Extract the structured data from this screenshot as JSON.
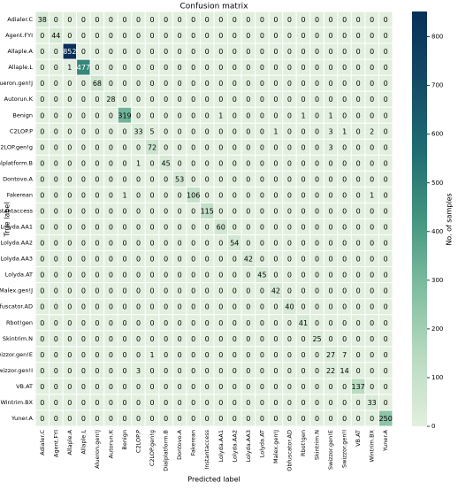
{
  "chart_data": {
    "type": "heatmap",
    "title": "Confusion matrix",
    "x_label": "Predicted label",
    "y_label": "True label",
    "categories": [
      "Adialer.C",
      "Agent.FYI",
      "Allaple.A",
      "Allaple.L",
      "Alueron.gen!J",
      "Autorun.K",
      "Benign",
      "C2LOP.P",
      "C2LOP.gen!g",
      "Dialplatform.B",
      "Dontovo.A",
      "Fakerean",
      "Instantaccess",
      "Lolyda.AA1",
      "Lolyda.AA2",
      "Lolyda.AA3",
      "Lolyda.AT",
      "Malex.gen!J",
      "Obfuscator.AD",
      "Rbot!gen",
      "Skintrim.N",
      "Swizzor.gen!E",
      "Swizzor.gen!I",
      "VB.AT",
      "Wintrim.BX",
      "Yuner.A"
    ],
    "values": [
      [
        38,
        0,
        0,
        0,
        0,
        0,
        0,
        0,
        0,
        0,
        0,
        0,
        0,
        0,
        0,
        0,
        0,
        0,
        0,
        0,
        0,
        0,
        0,
        0,
        0,
        0
      ],
      [
        0,
        44,
        0,
        0,
        0,
        0,
        0,
        0,
        0,
        0,
        0,
        0,
        0,
        0,
        0,
        0,
        0,
        0,
        0,
        0,
        0,
        0,
        0,
        0,
        0,
        0
      ],
      [
        0,
        0,
        852,
        0,
        0,
        0,
        0,
        0,
        0,
        0,
        0,
        0,
        0,
        0,
        0,
        0,
        0,
        0,
        0,
        0,
        0,
        0,
        0,
        0,
        0,
        0
      ],
      [
        0,
        0,
        1,
        477,
        0,
        0,
        0,
        0,
        0,
        0,
        0,
        0,
        0,
        0,
        0,
        0,
        0,
        0,
        0,
        0,
        0,
        0,
        0,
        0,
        0,
        0
      ],
      [
        0,
        0,
        0,
        0,
        68,
        0,
        0,
        0,
        0,
        0,
        0,
        0,
        0,
        0,
        0,
        0,
        0,
        0,
        0,
        0,
        0,
        0,
        0,
        0,
        0,
        0
      ],
      [
        0,
        0,
        0,
        0,
        0,
        28,
        0,
        0,
        0,
        0,
        0,
        0,
        0,
        0,
        0,
        0,
        0,
        0,
        0,
        0,
        0,
        0,
        0,
        0,
        0,
        0
      ],
      [
        0,
        0,
        0,
        0,
        0,
        0,
        319,
        0,
        0,
        0,
        0,
        0,
        0,
        1,
        0,
        0,
        0,
        0,
        0,
        1,
        0,
        1,
        0,
        0,
        0,
        0
      ],
      [
        0,
        0,
        0,
        0,
        0,
        0,
        0,
        33,
        5,
        0,
        0,
        0,
        0,
        0,
        0,
        0,
        0,
        1,
        0,
        0,
        0,
        3,
        1,
        0,
        2,
        0
      ],
      [
        0,
        0,
        0,
        0,
        0,
        0,
        0,
        0,
        72,
        0,
        0,
        0,
        0,
        0,
        0,
        0,
        0,
        0,
        0,
        0,
        0,
        3,
        0,
        0,
        0,
        0
      ],
      [
        0,
        0,
        0,
        0,
        0,
        0,
        0,
        1,
        0,
        45,
        0,
        0,
        0,
        0,
        0,
        0,
        0,
        0,
        0,
        0,
        0,
        0,
        0,
        0,
        0,
        0
      ],
      [
        0,
        0,
        0,
        0,
        0,
        0,
        0,
        0,
        0,
        0,
        53,
        0,
        0,
        0,
        0,
        0,
        0,
        0,
        0,
        0,
        0,
        0,
        0,
        0,
        0,
        0
      ],
      [
        0,
        0,
        0,
        0,
        0,
        0,
        1,
        0,
        0,
        0,
        0,
        106,
        0,
        0,
        0,
        0,
        0,
        0,
        0,
        0,
        0,
        0,
        0,
        0,
        1,
        0
      ],
      [
        0,
        0,
        0,
        0,
        0,
        0,
        0,
        0,
        0,
        0,
        0,
        0,
        115,
        0,
        0,
        0,
        0,
        0,
        0,
        0,
        0,
        0,
        0,
        0,
        0,
        0
      ],
      [
        0,
        0,
        0,
        0,
        0,
        0,
        0,
        0,
        0,
        0,
        0,
        0,
        0,
        60,
        0,
        0,
        0,
        0,
        0,
        0,
        0,
        0,
        0,
        0,
        0,
        0
      ],
      [
        0,
        0,
        0,
        0,
        0,
        0,
        0,
        0,
        0,
        0,
        0,
        0,
        0,
        0,
        54,
        0,
        0,
        0,
        0,
        0,
        0,
        0,
        0,
        0,
        0,
        0
      ],
      [
        0,
        0,
        0,
        0,
        0,
        0,
        0,
        0,
        0,
        0,
        0,
        0,
        0,
        0,
        0,
        42,
        0,
        0,
        0,
        0,
        0,
        0,
        0,
        0,
        0,
        0
      ],
      [
        0,
        0,
        0,
        0,
        0,
        0,
        0,
        0,
        0,
        0,
        0,
        0,
        0,
        0,
        0,
        0,
        45,
        0,
        0,
        0,
        0,
        0,
        0,
        0,
        0,
        0
      ],
      [
        0,
        0,
        0,
        0,
        0,
        0,
        0,
        0,
        0,
        0,
        0,
        0,
        0,
        0,
        0,
        0,
        0,
        42,
        0,
        0,
        0,
        0,
        0,
        0,
        0,
        0
      ],
      [
        0,
        0,
        0,
        0,
        0,
        0,
        0,
        0,
        0,
        0,
        0,
        0,
        0,
        0,
        0,
        0,
        0,
        0,
        40,
        0,
        0,
        0,
        0,
        0,
        0,
        0
      ],
      [
        0,
        0,
        0,
        0,
        0,
        0,
        0,
        0,
        0,
        0,
        0,
        0,
        0,
        0,
        0,
        0,
        0,
        0,
        0,
        41,
        0,
        0,
        0,
        0,
        0,
        0
      ],
      [
        0,
        0,
        0,
        0,
        0,
        0,
        0,
        0,
        0,
        0,
        0,
        0,
        0,
        0,
        0,
        0,
        0,
        0,
        0,
        0,
        25,
        0,
        0,
        0,
        0,
        0
      ],
      [
        0,
        0,
        0,
        0,
        0,
        0,
        0,
        0,
        1,
        0,
        0,
        0,
        0,
        0,
        0,
        0,
        0,
        0,
        0,
        0,
        0,
        27,
        7,
        0,
        0,
        0
      ],
      [
        0,
        0,
        0,
        0,
        0,
        0,
        0,
        3,
        0,
        0,
        0,
        0,
        0,
        0,
        0,
        0,
        0,
        0,
        0,
        0,
        0,
        22,
        14,
        0,
        0,
        0
      ],
      [
        0,
        0,
        0,
        0,
        0,
        0,
        0,
        0,
        0,
        0,
        0,
        0,
        0,
        0,
        0,
        0,
        0,
        0,
        0,
        0,
        0,
        0,
        0,
        137,
        0,
        0
      ],
      [
        0,
        0,
        0,
        0,
        0,
        0,
        0,
        0,
        0,
        0,
        0,
        0,
        0,
        0,
        0,
        0,
        0,
        0,
        0,
        0,
        0,
        0,
        0,
        0,
        33,
        0
      ],
      [
        0,
        0,
        0,
        0,
        0,
        0,
        0,
        0,
        0,
        0,
        0,
        0,
        0,
        0,
        0,
        0,
        0,
        0,
        0,
        0,
        0,
        0,
        0,
        0,
        0,
        250
      ]
    ],
    "colormap": [
      "#e2efdf",
      "#b9dbc0",
      "#80bda0",
      "#43957f",
      "#1e6c71",
      "#144a66",
      "#08305a"
    ],
    "colorbar": {
      "label": "No. of samples",
      "lim": [
        0,
        852
      ],
      "ticks": [
        0,
        100,
        200,
        300,
        400,
        500,
        600,
        700,
        800
      ]
    }
  }
}
